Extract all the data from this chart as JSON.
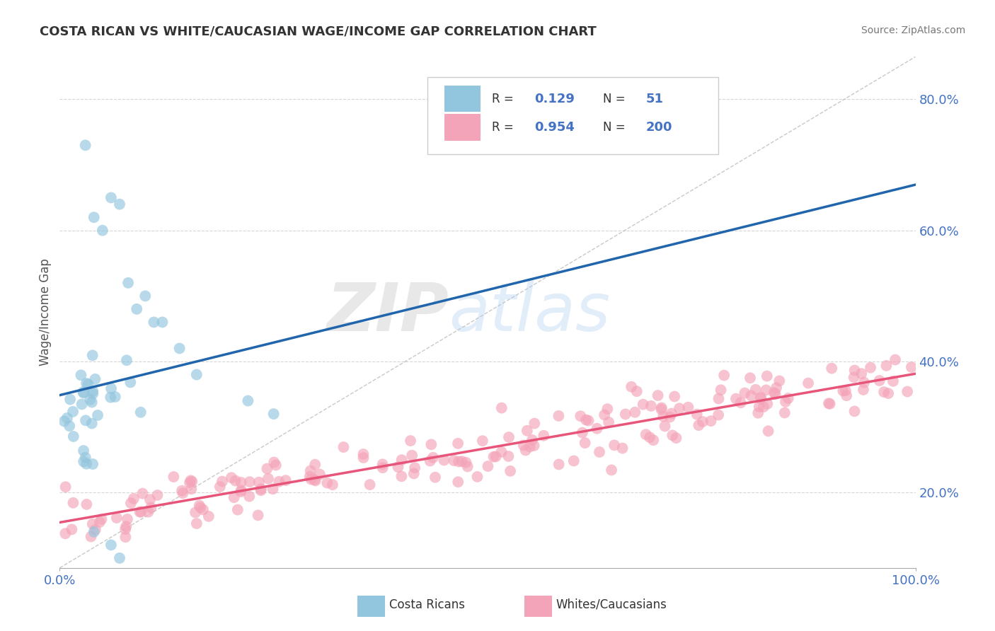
{
  "title": "COSTA RICAN VS WHITE/CAUCASIAN WAGE/INCOME GAP CORRELATION CHART",
  "source": "Source: ZipAtlas.com",
  "ylabel_label": "Wage/Income Gap",
  "r_blue": 0.129,
  "n_blue": 51,
  "r_pink": 0.954,
  "n_pink": 200,
  "blue_color": "#92c5de",
  "pink_color": "#f4a4b8",
  "blue_line_color": "#2166ac",
  "pink_line_color": "#e8557a",
  "watermark_zip": "ZIP",
  "watermark_atlas": "atlas",
  "background_color": "#ffffff",
  "grid_color": "#cccccc",
  "title_color": "#333333",
  "axis_label_color": "#4472c4",
  "xmin": 0.0,
  "xmax": 1.0,
  "ymin": 0.085,
  "ymax": 0.865,
  "ytick_vals": [
    0.2,
    0.4,
    0.6,
    0.8
  ],
  "ytick_labels": [
    "20.0%",
    "40.0%",
    "60.0%",
    "80.0%"
  ],
  "xtick_vals": [
    0.0,
    1.0
  ],
  "xtick_labels": [
    "0.0%",
    "100.0%"
  ]
}
